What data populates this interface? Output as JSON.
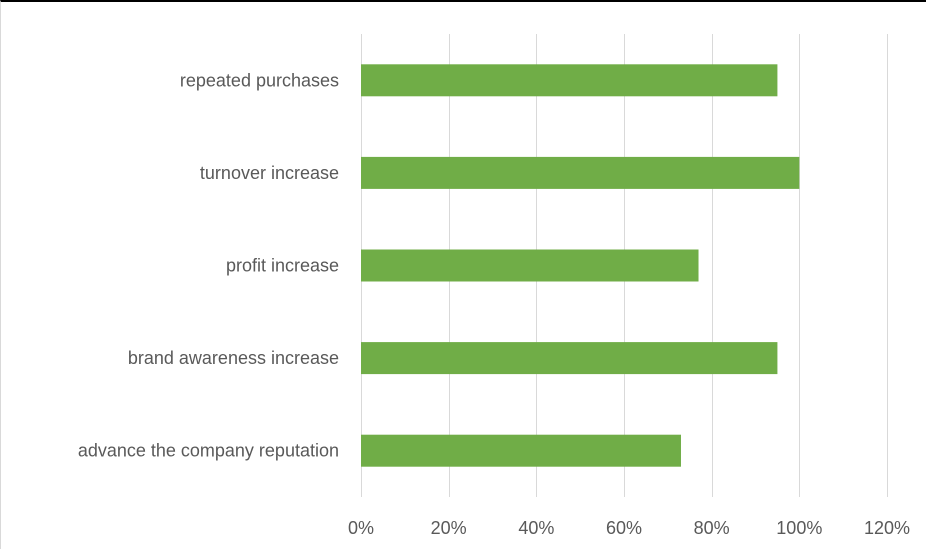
{
  "chart_data": {
    "type": "bar",
    "orientation": "horizontal",
    "title": "",
    "xlabel": "",
    "ylabel": "",
    "categories": [
      "repeated purchases",
      "turnover increase",
      "profit increase",
      "brand awareness increase",
      "advance the company reputation"
    ],
    "values": [
      95,
      100,
      77,
      95,
      73
    ],
    "xlim": [
      0,
      120
    ],
    "x_ticks": [
      0,
      20,
      40,
      60,
      80,
      100,
      120
    ],
    "x_tick_labels": [
      "0%",
      "20%",
      "40%",
      "60%",
      "80%",
      "100%",
      "120%"
    ],
    "grid": "vertical",
    "legend": "none",
    "bar_color": "#70ad47",
    "gridline_color": "#d9d9d9",
    "text_color": "#595959"
  }
}
